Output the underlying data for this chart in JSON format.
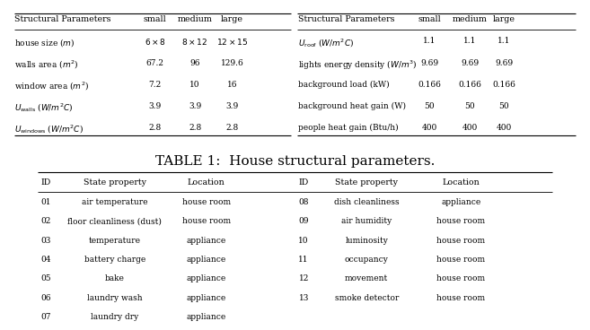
{
  "bg_color": "#ffffff",
  "title": "TABLE 1:  House structural parameters.",
  "title_fontsize": 11,
  "top_table": {
    "left": {
      "headers": [
        "Structural Parameters",
        "small",
        "medium",
        "large"
      ],
      "rows": [
        [
          "house size ($m$)",
          "$6 \\times 8$",
          "$8 \\times 12$",
          "$12 \\times 15$"
        ],
        [
          "walls area ($m^2$)",
          "67.2",
          "96",
          "129.6"
        ],
        [
          "window area ($m^2$)",
          "7.2",
          "10",
          "16"
        ],
        [
          "$U_\\mathrm{walls}$ ($W/m^2C$)",
          "3.9",
          "3.9",
          "3.9"
        ],
        [
          "$U_\\mathrm{windows}$ ($W/m^2C$)",
          "2.8",
          "2.8",
          "2.8"
        ]
      ]
    },
    "right": {
      "headers": [
        "Structural Parameters",
        "small",
        "medium",
        "large"
      ],
      "rows": [
        [
          "$U_\\mathrm{roof}$ ($W/m^2C$)",
          "1.1",
          "1.1",
          "1.1"
        ],
        [
          "lights energy density ($W/m^3$)",
          "9.69",
          "9.69",
          "9.69"
        ],
        [
          "background load (kW)",
          "0.166",
          "0.166",
          "0.166"
        ],
        [
          "background heat gain (W)",
          "50",
          "50",
          "50"
        ],
        [
          "people heat gain (Btu/h)",
          "400",
          "400",
          "400"
        ]
      ]
    }
  },
  "bottom_table": {
    "headers": [
      "ID",
      "State property",
      "Location",
      "ID",
      "State property",
      "Location"
    ],
    "rows": [
      [
        "01",
        "air temperature",
        "house room",
        "08",
        "dish cleanliness",
        "appliance"
      ],
      [
        "02",
        "floor cleanliness (dust)",
        "house room",
        "09",
        "air humidity",
        "house room"
      ],
      [
        "03",
        "temperature",
        "appliance",
        "10",
        "luminosity",
        "house room"
      ],
      [
        "04",
        "battery charge",
        "appliance",
        "11",
        "occupancy",
        "house room"
      ],
      [
        "05",
        "bake",
        "appliance",
        "12",
        "movement",
        "house room"
      ],
      [
        "06",
        "laundry wash",
        "appliance",
        "13",
        "smoke detector",
        "house room"
      ],
      [
        "07",
        "laundry dry",
        "appliance",
        "",
        "",
        ""
      ]
    ]
  }
}
